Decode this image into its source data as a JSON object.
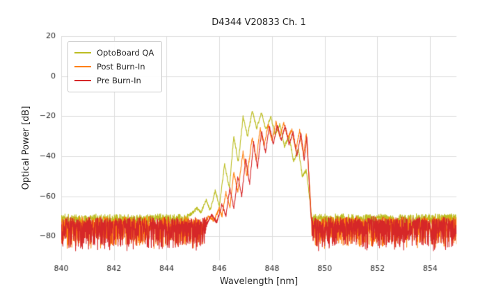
{
  "chart_data": {
    "type": "line",
    "title": "D4344 V20833 Ch. 1",
    "xlabel": "Wavelength [nm]",
    "ylabel": "Optical Power [dB]",
    "xlim": [
      840,
      855
    ],
    "ylim": [
      -92,
      20
    ],
    "xticks": [
      840,
      842,
      844,
      846,
      848,
      850,
      852,
      854
    ],
    "yticks": [
      20,
      0,
      -20,
      -40,
      -60,
      -80
    ],
    "grid": true,
    "grid_color": "#dcdcdc",
    "legend_position": "upper left",
    "noise_seed": 42,
    "series": [
      {
        "name": "OptoBoard QA",
        "color": "#bcbd22",
        "noise": {
          "floor": -70.8,
          "up": 2.2,
          "down": 6.5
        },
        "points": [
          [
            844.8,
            -70
          ],
          [
            845.0,
            -68
          ],
          [
            845.15,
            -66
          ],
          [
            845.3,
            -68
          ],
          [
            845.5,
            -62
          ],
          [
            845.65,
            -67
          ],
          [
            845.85,
            -57
          ],
          [
            846.0,
            -65
          ],
          [
            846.2,
            -44
          ],
          [
            846.38,
            -56
          ],
          [
            846.55,
            -30
          ],
          [
            846.72,
            -43
          ],
          [
            846.9,
            -20.5
          ],
          [
            847.07,
            -30
          ],
          [
            847.25,
            -17.5
          ],
          [
            847.42,
            -26
          ],
          [
            847.6,
            -18
          ],
          [
            847.77,
            -27
          ],
          [
            847.95,
            -20
          ],
          [
            848.12,
            -29
          ],
          [
            848.3,
            -24
          ],
          [
            848.47,
            -35
          ],
          [
            848.65,
            -30
          ],
          [
            848.82,
            -43
          ],
          [
            849.0,
            -36
          ],
          [
            849.15,
            -50
          ],
          [
            849.3,
            -47
          ],
          [
            849.4,
            -58
          ],
          [
            849.5,
            -70
          ]
        ]
      },
      {
        "name": "Post Burn-In",
        "color": "#ff7f0e",
        "noise": {
          "floor": -73.5,
          "up": 3.5,
          "down": 13
        },
        "points": [
          [
            845.4,
            -74
          ],
          [
            845.6,
            -70
          ],
          [
            845.8,
            -72
          ],
          [
            846.0,
            -66
          ],
          [
            846.1,
            -70
          ],
          [
            846.25,
            -58
          ],
          [
            846.4,
            -66
          ],
          [
            846.55,
            -48
          ],
          [
            846.7,
            -58
          ],
          [
            846.9,
            -38
          ],
          [
            847.05,
            -50
          ],
          [
            847.25,
            -30.5
          ],
          [
            847.4,
            -42
          ],
          [
            847.55,
            -26
          ],
          [
            847.7,
            -35
          ],
          [
            847.85,
            -24
          ],
          [
            848.0,
            -32
          ],
          [
            848.15,
            -23
          ],
          [
            848.3,
            -30
          ],
          [
            848.45,
            -23.5
          ],
          [
            848.6,
            -31
          ],
          [
            848.75,
            -26.5
          ],
          [
            848.9,
            -37
          ],
          [
            849.05,
            -27
          ],
          [
            849.2,
            -40
          ],
          [
            849.3,
            -28.5
          ],
          [
            849.38,
            -45
          ],
          [
            849.45,
            -60
          ],
          [
            849.5,
            -75
          ]
        ]
      },
      {
        "name": "Pre Burn-In",
        "color": "#d62728",
        "noise": {
          "floor": -73.5,
          "up": 3.5,
          "down": 14
        },
        "points": [
          [
            845.5,
            -75
          ],
          [
            845.7,
            -69
          ],
          [
            845.9,
            -73
          ],
          [
            846.1,
            -64
          ],
          [
            846.25,
            -70
          ],
          [
            846.4,
            -56
          ],
          [
            846.55,
            -66
          ],
          [
            846.7,
            -50
          ],
          [
            846.85,
            -60
          ],
          [
            847.0,
            -41
          ],
          [
            847.15,
            -54
          ],
          [
            847.3,
            -33
          ],
          [
            847.45,
            -46
          ],
          [
            847.6,
            -27.5
          ],
          [
            847.75,
            -38
          ],
          [
            847.9,
            -25
          ],
          [
            848.05,
            -34
          ],
          [
            848.2,
            -24.5
          ],
          [
            848.35,
            -32
          ],
          [
            848.5,
            -25
          ],
          [
            848.65,
            -34
          ],
          [
            848.8,
            -28
          ],
          [
            848.95,
            -40
          ],
          [
            849.1,
            -28.5
          ],
          [
            849.22,
            -42
          ],
          [
            849.32,
            -30
          ],
          [
            849.4,
            -50
          ],
          [
            849.47,
            -68
          ],
          [
            849.52,
            -76
          ]
        ]
      }
    ]
  }
}
